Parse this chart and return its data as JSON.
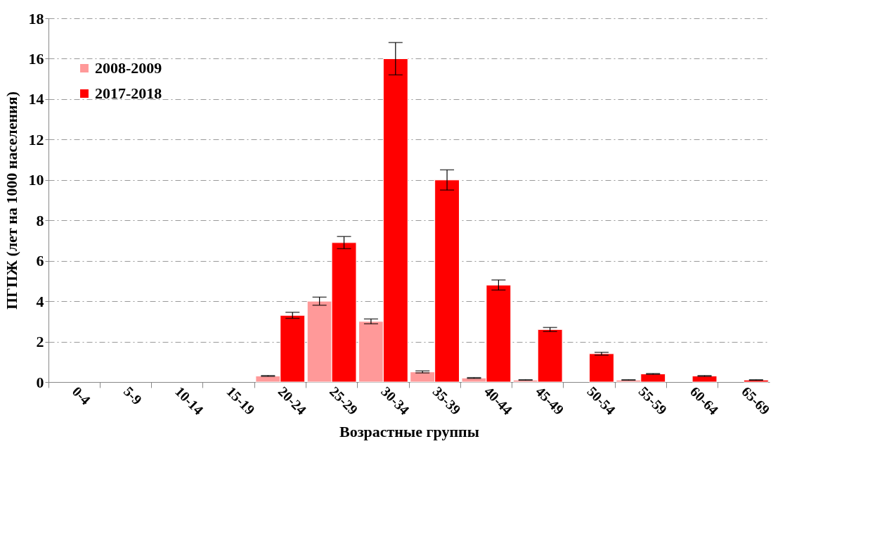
{
  "chart_data": {
    "type": "bar",
    "xlabel": "Возрастные группы",
    "ylabel": "ПГПЖ  (лет на 1000 населения)",
    "categories": [
      "0-4",
      "5-9",
      "10-14",
      "15-19",
      "20-24",
      "25-29",
      "30-34",
      "35-39",
      "40-44",
      "45-49",
      "50-54",
      "55-59",
      "60-64",
      "65-69"
    ],
    "series": [
      {
        "name": "2008-2009",
        "color": "#ff9999",
        "values": [
          null,
          null,
          null,
          null,
          0.3,
          4.0,
          3.0,
          0.5,
          0.2,
          0.1,
          null,
          0.1,
          null,
          null
        ],
        "errors": [
          null,
          null,
          null,
          null,
          0.02,
          0.2,
          0.12,
          0.05,
          0.02,
          0.01,
          null,
          0.01,
          null,
          null
        ]
      },
      {
        "name": "2017-2018",
        "color": "#ff0000",
        "values": [
          null,
          null,
          null,
          null,
          3.3,
          6.9,
          16.0,
          10.0,
          4.8,
          2.6,
          1.4,
          0.4,
          0.3,
          0.1
        ],
        "errors": [
          null,
          null,
          null,
          null,
          0.15,
          0.3,
          0.8,
          0.5,
          0.25,
          0.1,
          0.07,
          0.02,
          0.02,
          0.01
        ]
      }
    ],
    "ylim": [
      0,
      18
    ],
    "yticks": [
      0,
      2,
      4,
      6,
      8,
      10,
      12,
      14,
      16,
      18
    ],
    "grid": "y",
    "legend": "top left"
  }
}
